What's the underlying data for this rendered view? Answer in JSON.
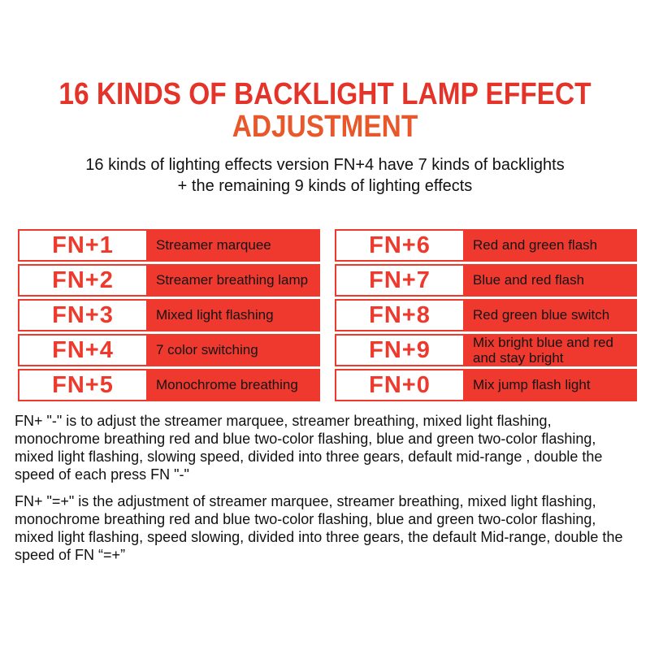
{
  "title": {
    "line1": "16 KINDS OF BACKLIGHT LAMP EFFECT",
    "line2": "ADJUSTMENT"
  },
  "subtitle": "16 kinds of lighting effects version FN+4 have 7 kinds of backlights + the remaining 9 kinds of lighting effects",
  "table": {
    "left": [
      {
        "key": "FN+1",
        "effect": "Streamer marquee"
      },
      {
        "key": "FN+2",
        "effect": "Streamer breathing lamp"
      },
      {
        "key": "FN+3",
        "effect": "Mixed light flashing"
      },
      {
        "key": "FN+4",
        "effect": "7 color switching"
      },
      {
        "key": "FN+5",
        "effect": "Monochrome breathing"
      }
    ],
    "right": [
      {
        "key": "FN+6",
        "effect": "Red and green flash"
      },
      {
        "key": "FN+7",
        "effect": "Blue and red flash"
      },
      {
        "key": "FN+8",
        "effect": "Red green blue switch"
      },
      {
        "key": "FN+9",
        "effect": "Mix bright blue and red and stay bright"
      },
      {
        "key": "FN+0",
        "effect": "Mix jump flash light"
      }
    ]
  },
  "paragraphs": {
    "minus": "FN+ \"-\" is to adjust the streamer marquee, streamer breathing, mixed light flashing, monochrome breathing red and blue two-color flashing, blue and green two-color flashing, mixed light flashing, slowing speed, divided into three gears, default mid-range , double the speed of each press FN \"-\"",
    "plus": "FN+ \"=+\" is the adjustment of streamer marquee, streamer breathing, mixed light flashing, monochrome breathing red and blue two-color flashing, blue and green two-color flashing, mixed light flashing, speed slowing, divided into three gears, the default Mid-range, double the speed of FN “=+”"
  },
  "colors": {
    "title_red": "#e43329",
    "title_orange": "#e8582b",
    "cell_red": "#f0392e",
    "border_red": "#ee392d",
    "fn_text_red": "#ee392d",
    "body_text": "#111111"
  }
}
